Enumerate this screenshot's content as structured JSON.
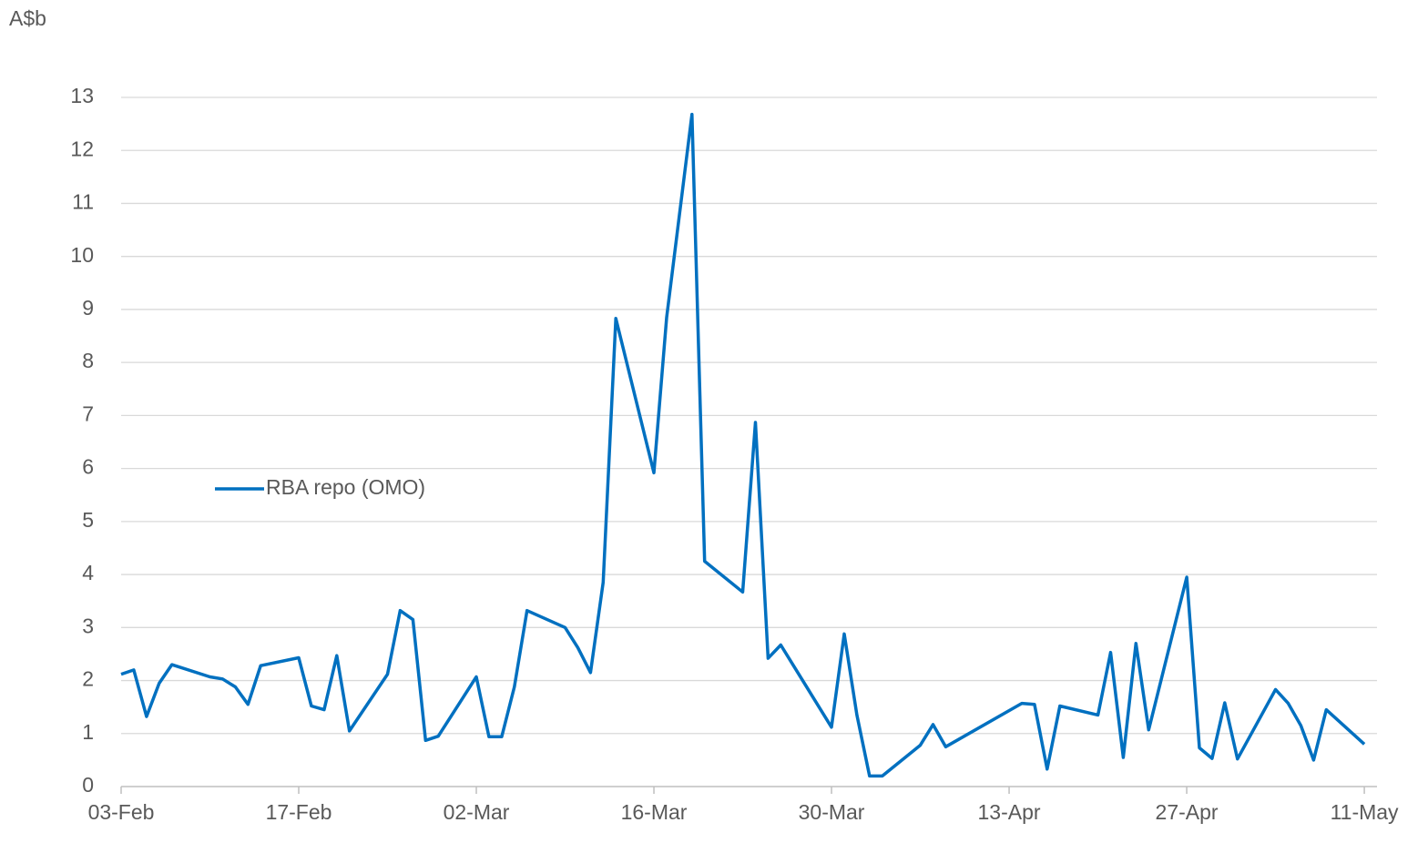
{
  "chart_data": {
    "type": "line",
    "y_label": "A$b",
    "x": [
      "03-Feb",
      "04-Feb",
      "05-Feb",
      "06-Feb",
      "07-Feb",
      "10-Feb",
      "11-Feb",
      "12-Feb",
      "13-Feb",
      "14-Feb",
      "17-Feb",
      "18-Feb",
      "19-Feb",
      "20-Feb",
      "21-Feb",
      "24-Feb",
      "25-Feb",
      "26-Feb",
      "27-Feb",
      "28-Feb",
      "02-Mar",
      "03-Mar",
      "04-Mar",
      "05-Mar",
      "06-Mar",
      "09-Mar",
      "10-Mar",
      "11-Mar",
      "12-Mar",
      "13-Mar",
      "16-Mar",
      "17-Mar",
      "19-Mar",
      "20-Mar",
      "23-Mar",
      "24-Mar",
      "25-Mar",
      "26-Mar",
      "27-Mar",
      "30-Mar",
      "31-Mar",
      "01-Apr",
      "02-Apr",
      "03-Apr",
      "06-Apr",
      "07-Apr",
      "08-Apr",
      "14-Apr",
      "15-Apr",
      "16-Apr",
      "17-Apr",
      "20-Apr",
      "21-Apr",
      "22-Apr",
      "23-Apr",
      "24-Apr",
      "27-Apr",
      "28-Apr",
      "29-Apr",
      "30-Apr",
      "01-May",
      "04-May",
      "05-May",
      "06-May",
      "07-May",
      "08-May",
      "11-May"
    ],
    "series": [
      {
        "name": "RBA repo (OMO)",
        "color": "#0070c0",
        "values": [
          2.12,
          2.2,
          1.32,
          1.95,
          2.3,
          2.07,
          2.03,
          1.88,
          1.55,
          2.28,
          2.43,
          1.52,
          1.45,
          2.47,
          1.05,
          2.12,
          3.32,
          3.15,
          0.87,
          0.95,
          2.07,
          0.94,
          0.94,
          1.88,
          3.32,
          3.0,
          2.62,
          2.15,
          3.85,
          8.83,
          5.92,
          8.85,
          12.68,
          4.25,
          3.67,
          6.87,
          2.42,
          2.67,
          2.28,
          1.12,
          2.88,
          1.35,
          0.2,
          0.2,
          0.78,
          1.17,
          0.75,
          1.57,
          1.55,
          0.33,
          1.52,
          1.35,
          2.53,
          0.55,
          2.7,
          1.07,
          3.95,
          0.73,
          0.53,
          1.58,
          0.52,
          1.83,
          1.57,
          1.15,
          0.5,
          1.45,
          0.8
        ]
      }
    ],
    "xlim": [
      "03-Feb",
      "12-May"
    ],
    "xticks": [
      "03-Feb",
      "17-Feb",
      "02-Mar",
      "16-Mar",
      "30-Mar",
      "13-Apr",
      "27-Apr",
      "11-May"
    ],
    "ylim": [
      0,
      13
    ],
    "yticks": [
      0,
      1,
      2,
      3,
      4,
      5,
      6,
      7,
      8,
      9,
      10,
      11,
      12,
      13
    ],
    "grid": true
  }
}
